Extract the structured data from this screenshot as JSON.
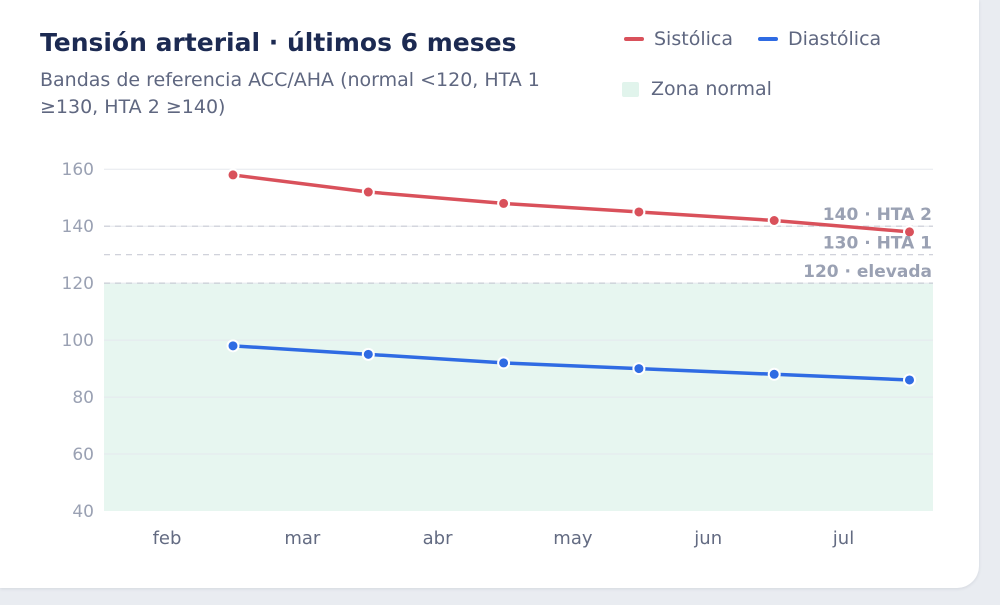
{
  "title": "Tensión arterial · últimos 6 meses",
  "subtitle": "Bandas de referencia ACC/AHA (normal <120, HTA 1 ≥130, HTA 2 ≥140)",
  "legend": {
    "systolic": "Sistólica",
    "diastolic": "Diastólica",
    "normal_zone": "Zona normal"
  },
  "colors": {
    "systolic": "#d9515b",
    "diastolic": "#2f6be3",
    "normal_zone": "#e7f6f0",
    "grid": "#e6e8ee",
    "reference": "#c9ccd6"
  },
  "chart_data": {
    "type": "line",
    "title": "Tensión arterial · últimos 6 meses",
    "subtitle": "Bandas de referencia ACC/AHA (normal <120, HTA 1 ≥130, HTA 2 ≥140)",
    "categories": [
      "feb",
      "mar",
      "abr",
      "may",
      "jun",
      "jul"
    ],
    "ylim": [
      40,
      165
    ],
    "yticks": [
      40,
      60,
      80,
      100,
      120,
      140,
      160
    ],
    "grid": true,
    "legend_position": "top-right",
    "series": [
      {
        "name": "Sistólica",
        "values": [
          158,
          152,
          148,
          145,
          142,
          138
        ]
      },
      {
        "name": "Diastólica",
        "values": [
          98,
          95,
          92,
          90,
          88,
          86
        ]
      }
    ],
    "normal_zone": {
      "label": "Zona normal",
      "from": 40,
      "to": 120
    },
    "reference_lines": [
      {
        "value": 140,
        "label": "140 · HTA 2"
      },
      {
        "value": 130,
        "label": "130 · HTA 1"
      },
      {
        "value": 120,
        "label": "120 · elevada"
      }
    ]
  }
}
